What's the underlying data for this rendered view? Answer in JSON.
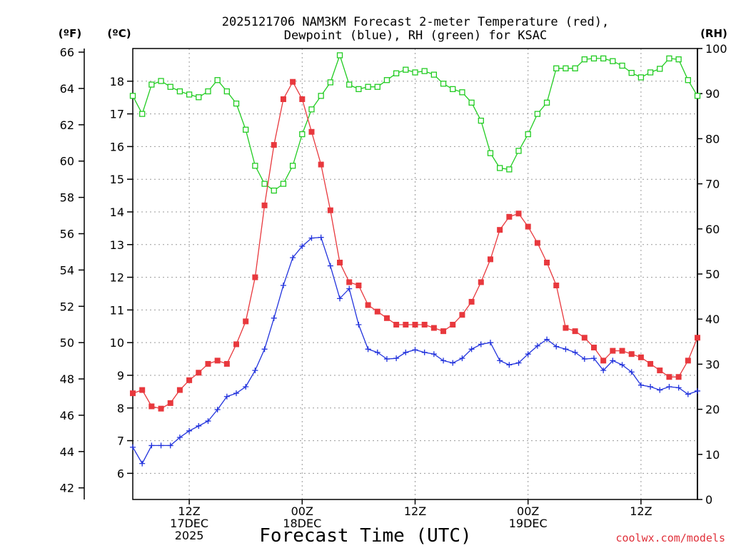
{
  "chart_data": {
    "type": "line",
    "title_line1": "2025121706 NAM3KM Forecast 2-meter Temperature (red),",
    "title_line2": "Dewpoint (blue), RH (green) for KSAC",
    "unit_left_f": "(ºF)",
    "unit_left_c": "(ºC)",
    "unit_right": "(RH)",
    "xlabel": "Forecast Time (UTC)",
    "credit": "coolwx.com/models",
    "x_hours_from_06z_17dec": [
      0,
      60
    ],
    "y_celsius_range": [
      5.2,
      19.0
    ],
    "y_rh_range": [
      0,
      100
    ],
    "fahrenheit_ticks": [
      42,
      44,
      46,
      48,
      50,
      52,
      54,
      56,
      58,
      60,
      62,
      64,
      66
    ],
    "celsius_ticks": [
      6,
      7,
      8,
      9,
      10,
      11,
      12,
      13,
      14,
      15,
      16,
      17,
      18
    ],
    "rh_ticks": [
      0,
      10,
      20,
      30,
      40,
      50,
      60,
      70,
      80,
      90,
      100
    ],
    "x_ticks": [
      {
        "hour": 6,
        "lines": [
          "12Z",
          "17DEC",
          "2025"
        ]
      },
      {
        "hour": 18,
        "lines": [
          "00Z",
          "18DEC"
        ]
      },
      {
        "hour": 30,
        "lines": [
          "12Z"
        ]
      },
      {
        "hour": 42,
        "lines": [
          "00Z",
          "19DEC"
        ]
      },
      {
        "hour": 54,
        "lines": [
          "12Z"
        ]
      }
    ],
    "series": [
      {
        "name": "Temperature",
        "units": "C",
        "color": "#e8383d",
        "marker": "filled-square",
        "values": [
          8.45,
          8.55,
          8.05,
          7.98,
          8.15,
          8.55,
          8.85,
          9.08,
          9.35,
          9.45,
          9.35,
          9.95,
          10.65,
          12.0,
          14.2,
          16.05,
          17.45,
          17.98,
          17.45,
          16.45,
          15.45,
          14.05,
          12.45,
          11.85,
          11.75,
          11.15,
          10.95,
          10.75,
          10.55,
          10.55,
          10.55,
          10.55,
          10.45,
          10.35,
          10.55,
          10.85,
          11.25,
          11.85,
          12.55,
          13.45,
          13.85,
          13.95,
          13.55,
          13.05,
          12.45,
          11.75,
          10.45,
          10.35,
          10.15,
          9.85,
          9.45,
          9.75,
          9.75,
          9.65,
          9.55,
          9.35,
          9.15,
          8.95,
          8.95,
          9.45,
          10.15
        ]
      },
      {
        "name": "Dewpoint",
        "units": "C",
        "color": "#2233dd",
        "marker": "plus",
        "values": [
          6.8,
          6.3,
          6.85,
          6.85,
          6.85,
          7.1,
          7.3,
          7.45,
          7.6,
          7.95,
          8.35,
          8.45,
          8.65,
          9.15,
          9.8,
          10.75,
          11.75,
          12.6,
          12.95,
          13.2,
          13.22,
          12.35,
          11.35,
          11.65,
          10.55,
          9.8,
          9.7,
          9.5,
          9.52,
          9.7,
          9.78,
          9.7,
          9.65,
          9.45,
          9.38,
          9.52,
          9.8,
          9.95,
          10.0,
          9.45,
          9.32,
          9.38,
          9.65,
          9.9,
          10.1,
          9.88,
          9.8,
          9.7,
          9.5,
          9.52,
          9.15,
          9.45,
          9.32,
          9.1,
          8.7,
          8.65,
          8.55,
          8.65,
          8.62,
          8.42,
          8.52
        ]
      },
      {
        "name": "RH",
        "units": "%",
        "color": "#22cc22",
        "marker": "open-square",
        "values": [
          89.5,
          85.5,
          92.0,
          92.8,
          91.5,
          90.5,
          89.8,
          89.2,
          90.5,
          93.0,
          90.5,
          87.8,
          82.0,
          74.0,
          70.0,
          68.5,
          70.0,
          74.0,
          81.0,
          86.5,
          89.5,
          92.5,
          98.5,
          92.0,
          91.0,
          91.5,
          91.5,
          93.0,
          94.5,
          95.3,
          94.7,
          95.0,
          94.2,
          92.2,
          91.0,
          90.3,
          88.0,
          84.0,
          76.8,
          73.5,
          73.2,
          77.3,
          81.0,
          85.5,
          88.0,
          95.6,
          95.6,
          95.6,
          97.6,
          97.8,
          97.8,
          97.2,
          96.2,
          94.6,
          93.6,
          94.7,
          95.5,
          97.8,
          97.6,
          93.0,
          89.5
        ]
      }
    ]
  }
}
